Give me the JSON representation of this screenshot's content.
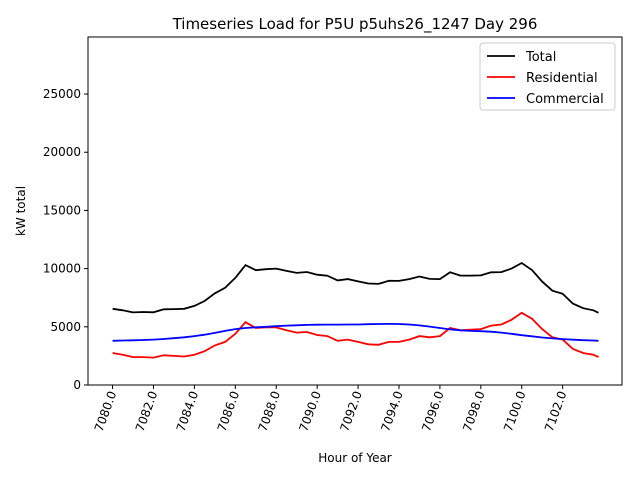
{
  "chart_data": {
    "type": "line",
    "title": "Timeseries Load for P5U p5uhs26_1247  Day 296",
    "xlabel": "Hour of Year",
    "ylabel": "kW total",
    "xlim": [
      7078.8,
      7104.9
    ],
    "ylim": [
      0,
      29900
    ],
    "xticks": [
      7080,
      7082,
      7084,
      7086,
      7088,
      7090,
      7092,
      7094,
      7096,
      7098,
      7100,
      7102
    ],
    "xtick_labels": [
      "7080.0",
      "7082.0",
      "7084.0",
      "7086.0",
      "7088.0",
      "7090.0",
      "7092.0",
      "7094.0",
      "7096.0",
      "7098.0",
      "7100.0",
      "7102.0"
    ],
    "yticks": [
      0,
      5000,
      10000,
      15000,
      20000,
      25000
    ],
    "ytick_labels": [
      "0",
      "5000",
      "10000",
      "15000",
      "20000",
      "25000"
    ],
    "grid": false,
    "legend_position": "top-right",
    "x": [
      7080,
      7080.5,
      7081,
      7081.5,
      7082,
      7082.5,
      7083,
      7083.5,
      7084,
      7084.5,
      7085,
      7085.5,
      7086,
      7086.5,
      7087,
      7087.5,
      7088,
      7088.5,
      7089,
      7089.5,
      7090,
      7090.5,
      7091,
      7091.5,
      7092,
      7092.5,
      7093,
      7093.5,
      7094,
      7094.5,
      7095,
      7095.5,
      7096,
      7096.5,
      7097,
      7097.5,
      7098,
      7098.5,
      7099,
      7099.5,
      7100,
      7100.5,
      7101,
      7101.5,
      7102,
      7102.5,
      7103,
      7103.5,
      7103.75
    ],
    "series": [
      {
        "name": "Total",
        "color": "#000000",
        "values": [
          6550,
          6420,
          6240,
          6270,
          6250,
          6500,
          6520,
          6550,
          6800,
          7220,
          7880,
          8350,
          9200,
          10300,
          9860,
          9950,
          10000,
          9800,
          9630,
          9710,
          9480,
          9390,
          8990,
          9100,
          8900,
          8720,
          8690,
          8950,
          8940,
          9100,
          9320,
          9120,
          9100,
          9680,
          9400,
          9400,
          9420,
          9680,
          9700,
          10000,
          10480,
          9880,
          8880,
          8100,
          7840,
          6990,
          6600,
          6420,
          6200
        ]
      },
      {
        "name": "Residential",
        "color": "#ff0000",
        "values": [
          2750,
          2600,
          2400,
          2400,
          2350,
          2550,
          2500,
          2450,
          2600,
          2900,
          3400,
          3700,
          4400,
          5400,
          4900,
          4950,
          4950,
          4700,
          4500,
          4550,
          4300,
          4200,
          3800,
          3900,
          3700,
          3500,
          3450,
          3700,
          3700,
          3900,
          4200,
          4100,
          4200,
          4900,
          4700,
          4750,
          4800,
          5100,
          5200,
          5600,
          6200,
          5700,
          4800,
          4100,
          3900,
          3100,
          2750,
          2600,
          2400
        ]
      },
      {
        "name": "Commercial",
        "color": "#0000ff",
        "values": [
          3800,
          3820,
          3840,
          3870,
          3900,
          3950,
          4020,
          4100,
          4200,
          4320,
          4480,
          4650,
          4800,
          4900,
          4960,
          5000,
          5050,
          5100,
          5130,
          5160,
          5180,
          5190,
          5190,
          5200,
          5200,
          5220,
          5240,
          5250,
          5240,
          5200,
          5120,
          5020,
          4900,
          4780,
          4700,
          4650,
          4620,
          4580,
          4500,
          4400,
          4280,
          4180,
          4080,
          4000,
          3940,
          3890,
          3850,
          3820,
          3800
        ]
      }
    ]
  }
}
